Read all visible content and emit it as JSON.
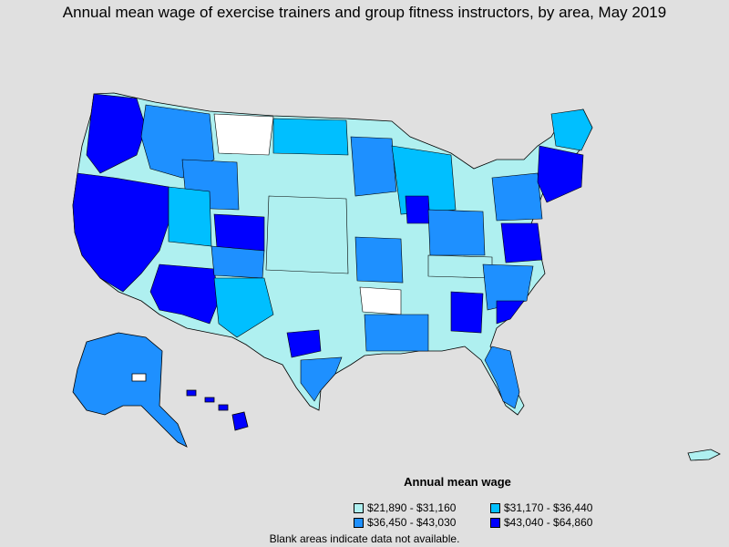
{
  "title": "Annual mean wage of exercise trainers and group fitness instructors, by area, May 2019",
  "legend": {
    "title": "Annual mean wage",
    "items": [
      {
        "label": "$21,890 - $31,160",
        "color": "#aff0f0"
      },
      {
        "label": "$31,170 - $36,440",
        "color": "#00bfff"
      },
      {
        "label": "$36,450 - $43,030",
        "color": "#1e90ff"
      },
      {
        "label": "$43,040 - $64,860",
        "color": "#0000ff"
      }
    ]
  },
  "footnote": "Blank areas indicate data not available.",
  "colors": {
    "background": "#e0e0e0",
    "no_data": "#ffffff",
    "border": "#000000"
  }
}
